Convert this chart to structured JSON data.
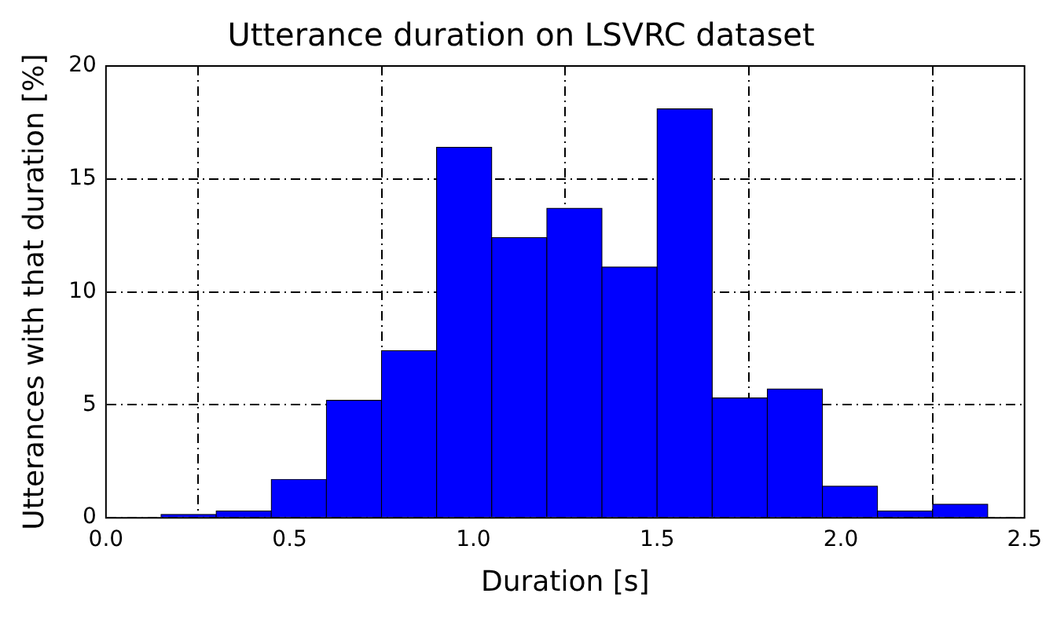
{
  "chart_data": {
    "type": "histogram",
    "title": "Utterance duration on LSVRC dataset",
    "xlabel": "Duration [s]",
    "ylabel": "Utterances with that duration [%]",
    "bins": [
      0.15,
      0.3,
      0.45,
      0.6,
      0.75,
      0.9,
      1.05,
      1.2,
      1.35,
      1.5,
      1.65,
      1.8,
      1.95,
      2.1,
      2.25,
      2.4
    ],
    "values": [
      0.15,
      0.3,
      1.7,
      5.2,
      7.4,
      16.4,
      12.4,
      13.7,
      11.1,
      18.1,
      5.3,
      5.7,
      1.4,
      0.3,
      0.6
    ],
    "color": "#0000ff",
    "xlim": [
      0,
      2.5
    ],
    "xticks": [
      {
        "value": 0,
        "label": "0.0"
      },
      {
        "value": 0.5,
        "label": "0.5"
      },
      {
        "value": 1,
        "label": "1.0"
      },
      {
        "value": 1.5,
        "label": "1.5"
      },
      {
        "value": 2,
        "label": "2.0"
      },
      {
        "value": 2.5,
        "label": "2.5"
      }
    ],
    "ylim": [
      0,
      20
    ],
    "yticks": [
      0,
      5,
      10,
      15,
      20
    ],
    "grid": true
  }
}
